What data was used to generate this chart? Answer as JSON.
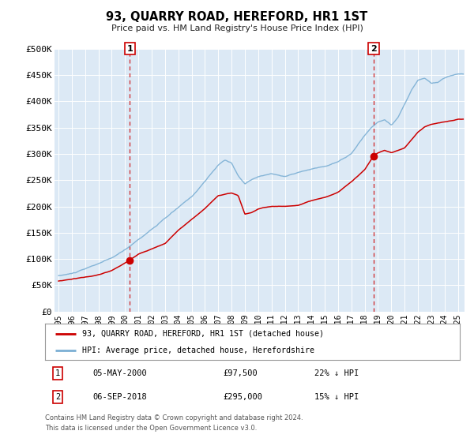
{
  "title": "93, QUARRY ROAD, HEREFORD, HR1 1ST",
  "subtitle": "Price paid vs. HM Land Registry's House Price Index (HPI)",
  "background_color": "#ffffff",
  "plot_bg_color": "#dce9f5",
  "grid_color": "#ffffff",
  "red_line_color": "#cc0000",
  "blue_line_color": "#7bafd4",
  "vline_color": "#cc0000",
  "marker_color": "#cc0000",
  "ylim": [
    0,
    500000
  ],
  "yticks": [
    0,
    50000,
    100000,
    150000,
    200000,
    250000,
    300000,
    350000,
    400000,
    450000,
    500000
  ],
  "ytick_labels": [
    "£0",
    "£50K",
    "£100K",
    "£150K",
    "£200K",
    "£250K",
    "£300K",
    "£350K",
    "£400K",
    "£450K",
    "£500K"
  ],
  "xlim_start": 1994.7,
  "xlim_end": 2025.5,
  "xticks": [
    1995,
    1996,
    1997,
    1998,
    1999,
    2000,
    2001,
    2002,
    2003,
    2004,
    2005,
    2006,
    2007,
    2008,
    2009,
    2010,
    2011,
    2012,
    2013,
    2014,
    2015,
    2016,
    2017,
    2018,
    2019,
    2020,
    2021,
    2022,
    2023,
    2024,
    2025
  ],
  "sale1_x": 2000.35,
  "sale1_y": 97500,
  "sale1_label": "1",
  "sale2_x": 2018.67,
  "sale2_y": 295000,
  "sale2_label": "2",
  "legend_line1": "93, QUARRY ROAD, HEREFORD, HR1 1ST (detached house)",
  "legend_line2": "HPI: Average price, detached house, Herefordshire",
  "annotation1_num": "1",
  "annotation1_date": "05-MAY-2000",
  "annotation1_price": "£97,500",
  "annotation1_hpi": "22% ↓ HPI",
  "annotation2_num": "2",
  "annotation2_date": "06-SEP-2018",
  "annotation2_price": "£295,000",
  "annotation2_hpi": "15% ↓ HPI",
  "footer1": "Contains HM Land Registry data © Crown copyright and database right 2024.",
  "footer2": "This data is licensed under the Open Government Licence v3.0."
}
